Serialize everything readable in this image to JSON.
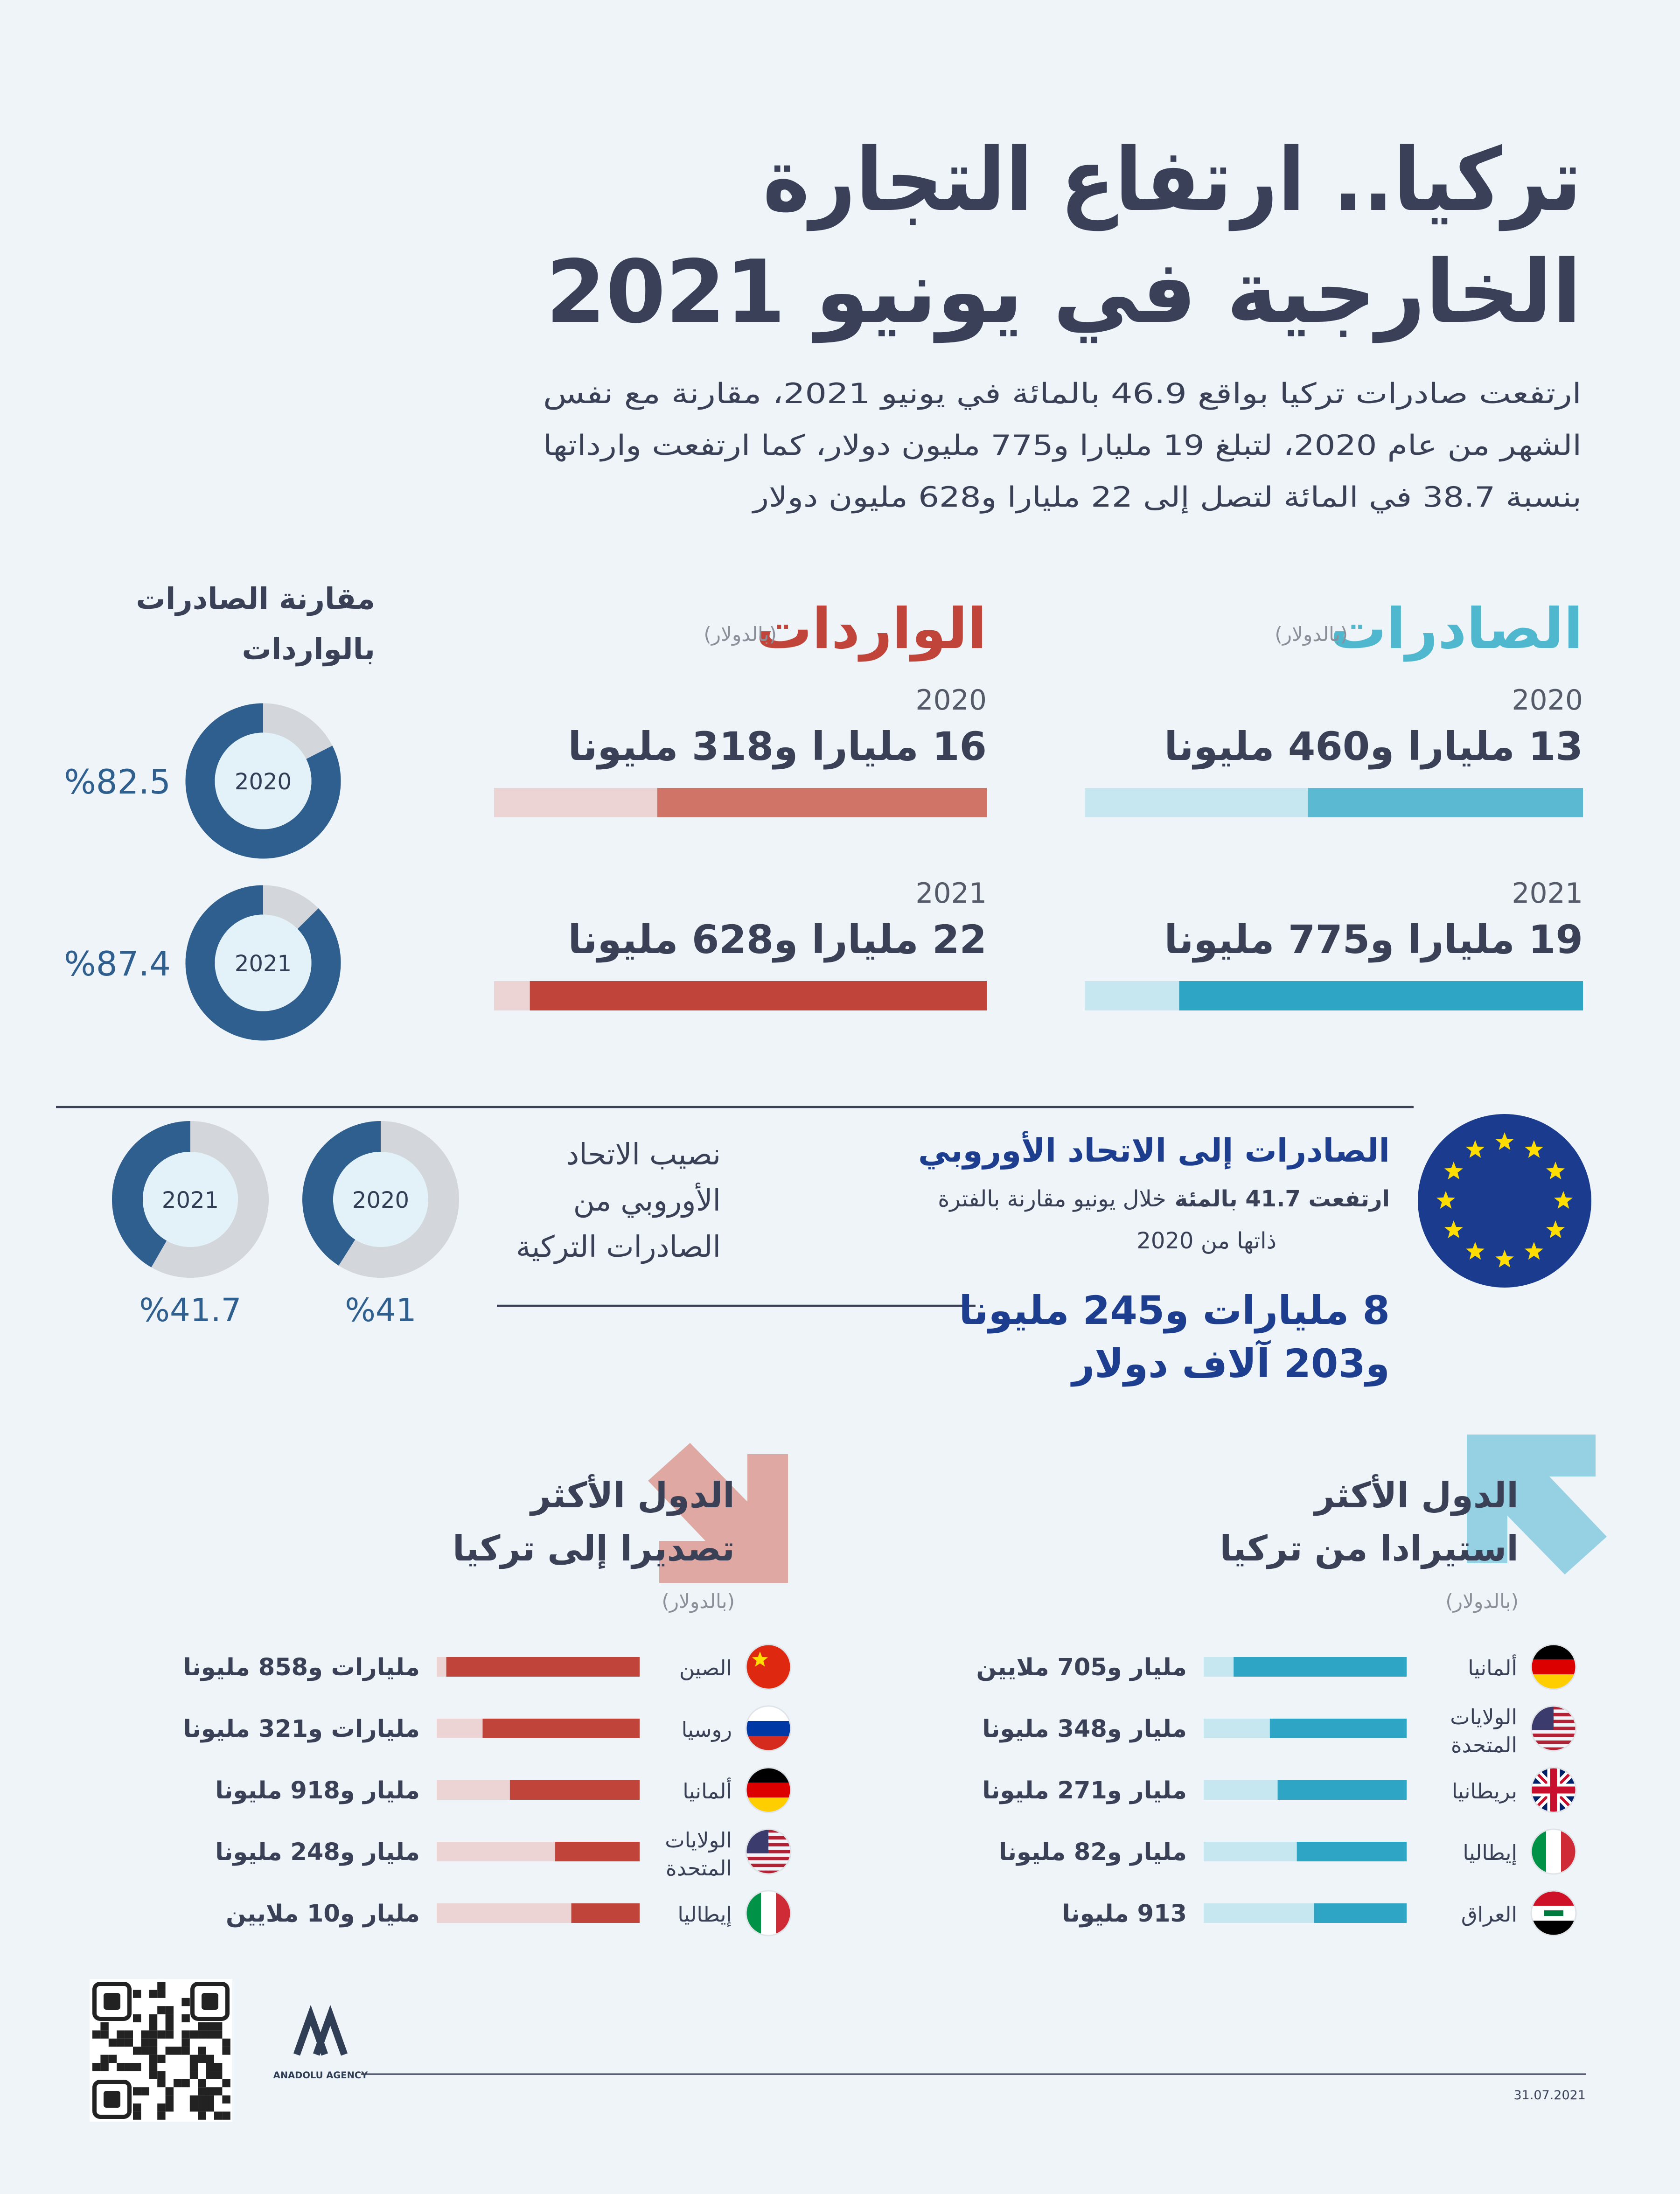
{
  "header": {
    "title": [
      "تركيا.. ارتفاع التجارة",
      "الخارجية في يونيو 2021"
    ],
    "intro": [
      "ارتفعت صادرات تركيا بواقع 46.9 بالمائة في يونيو 2021، مقارنة مع نفس",
      "الشهر من عام 2020، لتبلغ 19 مليارا و775 مليون دولار، كما ارتفعت وارداتها",
      "بنسبة 38.7 في المائة لتصل إلى 22 مليارا و628 مليون دولار"
    ]
  },
  "trade": {
    "xlim": [
      0,
      24.4
    ],
    "exports": {
      "title": "الصادرات",
      "unit": "(بالدولار)",
      "color": "#4fb8cf",
      "track_color": "#c6e7f0",
      "rows": [
        {
          "year": "2020",
          "label": "13 مليارا و460 مليونا",
          "value": 13.46,
          "color": "#5bbad2"
        },
        {
          "year": "2021",
          "label": "19 مليارا و775 مليونا",
          "value": 19.775,
          "color": "#2ea5c5"
        }
      ]
    },
    "imports": {
      "title": "الواردات",
      "unit": "(بالدولار)",
      "color": "#c0443a",
      "track_color": "#ecd4d4",
      "rows": [
        {
          "year": "2020",
          "label": "16 مليارا و318 مليونا",
          "value": 16.318,
          "color": "#d07468"
        },
        {
          "year": "2021",
          "label": "22 مليارا و628 مليونا",
          "value": 22.628,
          "color": "#c0443a"
        }
      ]
    }
  },
  "comparison": {
    "title": [
      "مقارنة الصادرات",
      "بالواردات"
    ],
    "donuts": [
      {
        "year": "2020",
        "value": 82.5,
        "label": "%82.5"
      },
      {
        "year": "2021",
        "value": 87.4,
        "label": "%87.4"
      }
    ]
  },
  "eu": {
    "title": "الصادرات إلى الاتحاد الأوروبي",
    "note_bold": "ارتفعت 41.7 بالمئة",
    "note": [
      "خلال يونيو مقارنة بالفترة",
      "ذاتها من 2020"
    ],
    "amount": [
      "8 مليارات و245 مليونا",
      "و203 آلاف دولار"
    ],
    "share_title": [
      "نصيب الاتحاد",
      "الأوروبي من",
      "الصادرات التركية"
    ],
    "donuts": [
      {
        "year": "2020",
        "value": 41,
        "label": "%41"
      },
      {
        "year": "2021",
        "value": 41.7,
        "label": "%41.7"
      }
    ]
  },
  "top_importers": {
    "title": [
      "الدول الأكثر",
      "استيرادا من تركيا"
    ],
    "unit": "(بالدولار)",
    "xlim": [
      0,
      2
    ],
    "color": "#2ea5c5",
    "track_color": "#c6e7f0",
    "rows": [
      {
        "country": [
          "ألمانيا"
        ],
        "label": "مليار و705 ملايين",
        "value": 1.705
      },
      {
        "country": [
          "الولايات",
          "المتحدة"
        ],
        "label": "مليار و348 مليونا",
        "value": 1.348
      },
      {
        "country": [
          "بريطانيا"
        ],
        "label": "مليار و271 مليونا",
        "value": 1.271
      },
      {
        "country": [
          "إيطاليا"
        ],
        "label": "مليار و82 مليونا",
        "value": 1.082
      },
      {
        "country": [
          "العراق"
        ],
        "label": "913 مليونا",
        "value": 0.913
      }
    ]
  },
  "top_exporters": {
    "title": [
      "الدول الأكثر",
      "تصديرا إلى تركيا"
    ],
    "unit": "(بالدولار)",
    "xlim": [
      0,
      3
    ],
    "color": "#c0443a",
    "track_color": "#ecd4d4",
    "rows": [
      {
        "country": [
          "الصين"
        ],
        "label": "مليارات و858 مليونا",
        "value": 2.858
      },
      {
        "country": [
          "روسيا"
        ],
        "label": "مليارات و321 مليونا",
        "value": 2.321
      },
      {
        "country": [
          "ألمانيا"
        ],
        "label": "مليار و918 مليونا",
        "value": 1.918
      },
      {
        "country": [
          "الولايات",
          "المتحدة"
        ],
        "label": "مليار و248 مليونا",
        "value": 1.248
      },
      {
        "country": [
          "إيطاليا"
        ],
        "label": "مليار و10 ملايين",
        "value": 1.01
      }
    ]
  },
  "footer": {
    "agency": "ANADOLU AGENCY",
    "date": "31.07.2021"
  }
}
